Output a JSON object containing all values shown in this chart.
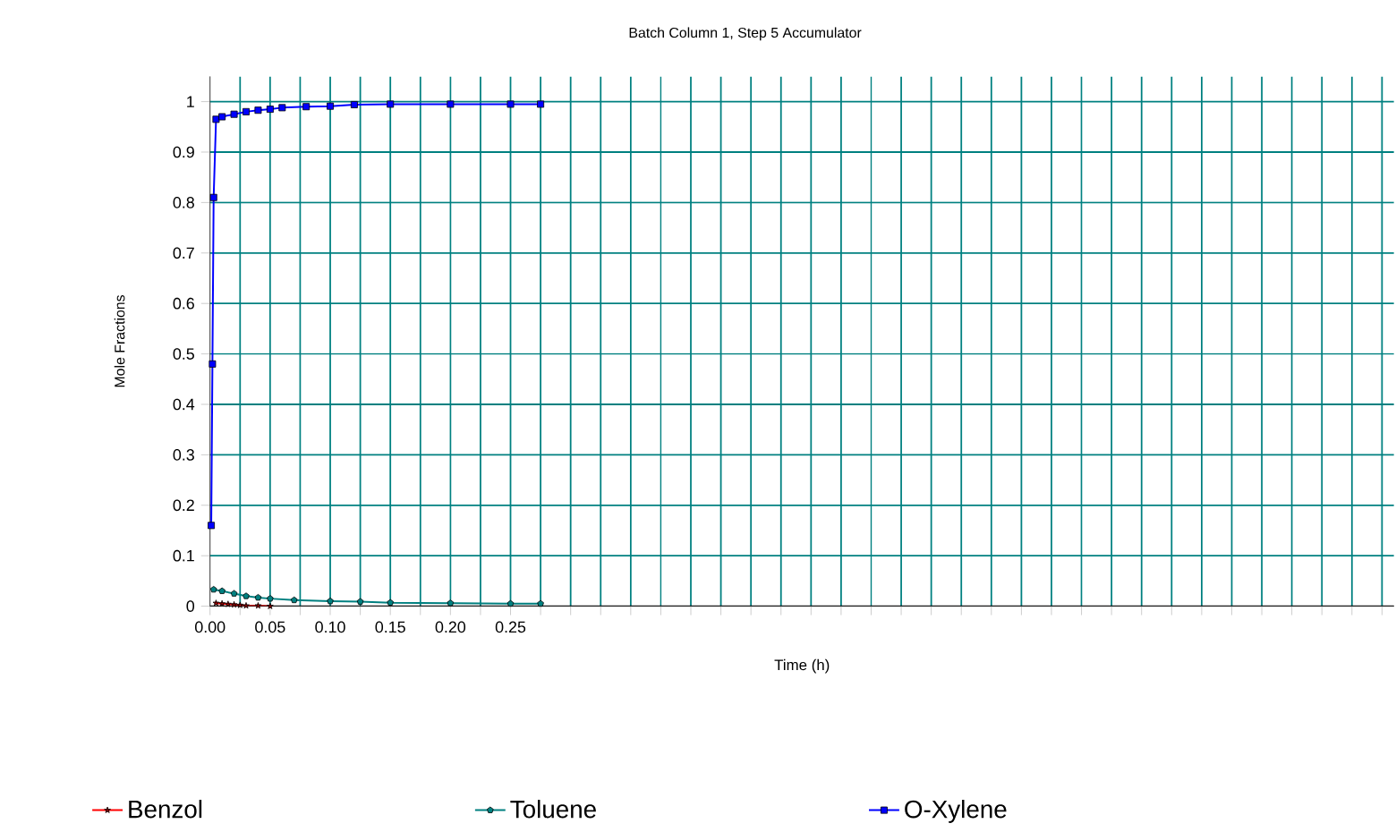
{
  "chart_data": {
    "type": "line",
    "title": "Batch Column 1, Step 5 Accumulator",
    "xlabel": "Time (h)",
    "ylabel": "Mole Fractions",
    "xlim": [
      0,
      0.985
    ],
    "ylim": [
      0,
      1.05
    ],
    "xticks": [
      {
        "value": 0,
        "label": "0.00"
      },
      {
        "value": 0.025,
        "label": null
      },
      {
        "value": 0.05,
        "label": "0.05"
      },
      {
        "value": 0.075,
        "label": null
      },
      {
        "value": 0.1,
        "label": "0.10"
      },
      {
        "value": 0.125,
        "label": null
      },
      {
        "value": 0.15,
        "label": "0.15"
      },
      {
        "value": 0.175,
        "label": null
      },
      {
        "value": 0.2,
        "label": "0.20"
      },
      {
        "value": 0.225,
        "label": null
      },
      {
        "value": 0.25,
        "label": "0.25"
      },
      {
        "value": 0.275,
        "label": null
      },
      {
        "value": 0.3,
        "label": null
      },
      {
        "value": 0.325,
        "label": null
      },
      {
        "value": 0.35,
        "label": null
      },
      {
        "value": 0.375,
        "label": null
      },
      {
        "value": 0.4,
        "label": null
      },
      {
        "value": 0.425,
        "label": null
      },
      {
        "value": 0.45,
        "label": null
      },
      {
        "value": 0.475,
        "label": null
      },
      {
        "value": 0.5,
        "label": null
      },
      {
        "value": 0.525,
        "label": null
      },
      {
        "value": 0.55,
        "label": null
      },
      {
        "value": 0.575,
        "label": null
      },
      {
        "value": 0.6,
        "label": null
      },
      {
        "value": 0.625,
        "label": null
      },
      {
        "value": 0.65,
        "label": null
      },
      {
        "value": 0.675,
        "label": null
      },
      {
        "value": 0.7,
        "label": null
      },
      {
        "value": 0.725,
        "label": null
      },
      {
        "value": 0.75,
        "label": null
      },
      {
        "value": 0.775,
        "label": null
      },
      {
        "value": 0.8,
        "label": null
      },
      {
        "value": 0.825,
        "label": null
      },
      {
        "value": 0.85,
        "label": null
      },
      {
        "value": 0.875,
        "label": null
      },
      {
        "value": 0.9,
        "label": null
      },
      {
        "value": 0.925,
        "label": null
      },
      {
        "value": 0.95,
        "label": null
      },
      {
        "value": 0.975,
        "label": null
      }
    ],
    "yticks": [
      0,
      0.1,
      0.2,
      0.3,
      0.4,
      0.5,
      0.6,
      0.7,
      0.8,
      0.9,
      1
    ],
    "grid": true,
    "legend": "bottom",
    "series": [
      {
        "name": "Benzol",
        "color": "#ff0000",
        "marker": "star",
        "x": [
          0.005,
          0.01,
          0.015,
          0.02,
          0.025,
          0.03,
          0.04,
          0.05
        ],
        "values": [
          0.006,
          0.005,
          0.004,
          0.003,
          0.002,
          0.001,
          0.001,
          0
        ]
      },
      {
        "name": "Toluene",
        "color": "#008080",
        "marker": "circle",
        "x": [
          0.003,
          0.01,
          0.02,
          0.03,
          0.04,
          0.05,
          0.07,
          0.1,
          0.125,
          0.15,
          0.2,
          0.25,
          0.275
        ],
        "values": [
          0.033,
          0.03,
          0.025,
          0.02,
          0.017,
          0.015,
          0.012,
          0.01,
          0.009,
          0.007,
          0.006,
          0.005,
          0.005
        ]
      },
      {
        "name": "O-Xylene",
        "color": "#0000ff",
        "marker": "square",
        "x": [
          0.001,
          0.002,
          0.003,
          0.005,
          0.01,
          0.02,
          0.03,
          0.04,
          0.05,
          0.06,
          0.08,
          0.1,
          0.12,
          0.15,
          0.2,
          0.25,
          0.275
        ],
        "values": [
          0.16,
          0.48,
          0.81,
          0.965,
          0.97,
          0.975,
          0.98,
          0.983,
          0.985,
          0.988,
          0.99,
          0.991,
          0.994,
          0.995,
          0.995,
          0.995,
          0.995
        ]
      }
    ]
  }
}
